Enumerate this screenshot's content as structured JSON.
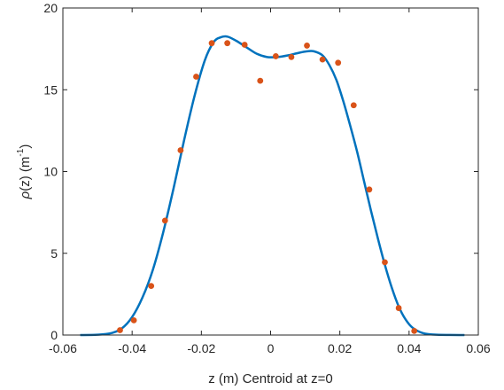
{
  "chart_data": {
    "type": "scatter",
    "xlabel": "z  (m)    Centroid at z=0",
    "ylabel": {
      "pre": "ρ",
      "mid": "(z)  (m",
      "sup": "-1",
      "post": ")"
    },
    "xlim": [
      -0.06,
      0.06
    ],
    "ylim": [
      0,
      20
    ],
    "xticks": [
      -0.06,
      -0.04,
      -0.02,
      0,
      0.02,
      0.04,
      0.06
    ],
    "xtick_labels": [
      "-0.06",
      "-0.04",
      "-0.02",
      "0",
      "0.02",
      "0.04",
      "0.06"
    ],
    "yticks": [
      0,
      5,
      10,
      15,
      20
    ],
    "ytick_labels": [
      "0",
      "5",
      "10",
      "15",
      "20"
    ],
    "grid": false,
    "series": [
      {
        "kind": "line",
        "color": "#0072BD",
        "points": [
          [
            -0.055,
            0.0
          ],
          [
            -0.05,
            0.02
          ],
          [
            -0.046,
            0.12
          ],
          [
            -0.043,
            0.4
          ],
          [
            -0.04,
            1.1
          ],
          [
            -0.037,
            2.3
          ],
          [
            -0.034,
            4.0
          ],
          [
            -0.031,
            6.3
          ],
          [
            -0.028,
            9.0
          ],
          [
            -0.025,
            11.9
          ],
          [
            -0.022,
            14.6
          ],
          [
            -0.019,
            16.8
          ],
          [
            -0.0165,
            17.9
          ],
          [
            -0.0145,
            18.2
          ],
          [
            -0.0125,
            18.25
          ],
          [
            -0.01,
            18.0
          ],
          [
            -0.007,
            17.6
          ],
          [
            -0.004,
            17.2
          ],
          [
            -0.001,
            17.0
          ],
          [
            0.002,
            17.0
          ],
          [
            0.005,
            17.1
          ],
          [
            0.008,
            17.25
          ],
          [
            0.0105,
            17.35
          ],
          [
            0.0125,
            17.35
          ],
          [
            0.015,
            17.1
          ],
          [
            0.017,
            16.5
          ],
          [
            0.019,
            15.6
          ],
          [
            0.021,
            14.3
          ],
          [
            0.023,
            12.8
          ],
          [
            0.025,
            11.2
          ],
          [
            0.027,
            9.4
          ],
          [
            0.029,
            7.6
          ],
          [
            0.031,
            5.9
          ],
          [
            0.033,
            4.3
          ],
          [
            0.035,
            2.9
          ],
          [
            0.037,
            1.75
          ],
          [
            0.039,
            0.95
          ],
          [
            0.041,
            0.45
          ],
          [
            0.044,
            0.12
          ],
          [
            0.048,
            0.02
          ],
          [
            0.056,
            0.0
          ]
        ]
      },
      {
        "kind": "markers",
        "color": "#D95319",
        "points": [
          [
            -0.0435,
            0.3
          ],
          [
            -0.0395,
            0.9
          ],
          [
            -0.0345,
            3.0
          ],
          [
            -0.0305,
            7.0
          ],
          [
            -0.026,
            11.3
          ],
          [
            -0.0215,
            15.8
          ],
          [
            -0.017,
            17.85
          ],
          [
            -0.0125,
            17.85
          ],
          [
            -0.0075,
            17.75
          ],
          [
            -0.003,
            15.55
          ],
          [
            0.0015,
            17.05
          ],
          [
            0.006,
            17.0
          ],
          [
            0.0105,
            17.7
          ],
          [
            0.015,
            16.85
          ],
          [
            0.0195,
            16.65
          ],
          [
            0.024,
            14.05
          ],
          [
            0.0285,
            8.9
          ],
          [
            0.033,
            4.45
          ],
          [
            0.037,
            1.65
          ],
          [
            0.0415,
            0.25
          ]
        ]
      }
    ]
  }
}
